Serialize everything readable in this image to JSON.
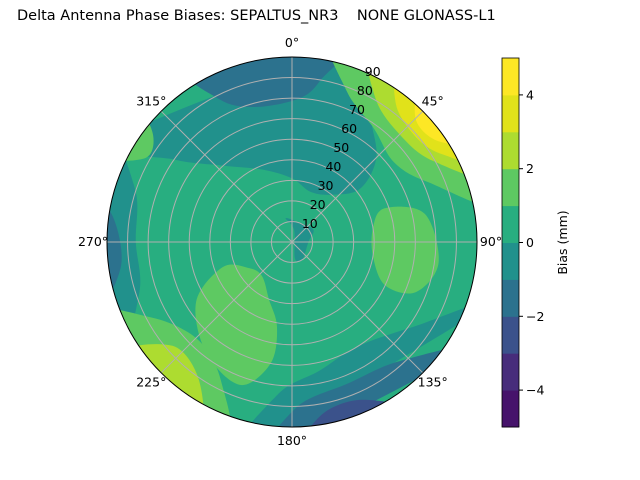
{
  "chart_data": {
    "type": "contour",
    "projection": "polar",
    "title": "Delta Antenna Phase Biases: SEPALTUS_NR3    NONE GLONASS-L1",
    "theta_direction": "clockwise",
    "theta_zero": "top",
    "theta_ticks": [
      "0°",
      "45°",
      "90°",
      "135°",
      "180°",
      "225°",
      "270°",
      "315°"
    ],
    "r_ticks": [
      "10",
      "20",
      "30",
      "40",
      "50",
      "60",
      "70",
      "80",
      "90"
    ],
    "r_range": [
      0,
      90
    ],
    "grid": true,
    "levels": [
      -5,
      -4,
      -3,
      -2,
      -1,
      0,
      1,
      2,
      3,
      4,
      5
    ],
    "level_colors": [
      "#46136b",
      "#472d7b",
      "#3b528b",
      "#2c728e",
      "#21918c",
      "#28ae80",
      "#5ec962",
      "#addc30",
      "#e1e21a",
      "#fde725"
    ],
    "background_level_index": 5,
    "regions": [
      {
        "level_index": 4,
        "points": [
          [
            300,
            90
          ],
          [
            305,
            70
          ],
          [
            318,
            50
          ],
          [
            338,
            38
          ],
          [
            0,
            31
          ],
          [
            20,
            26
          ],
          [
            40,
            30
          ],
          [
            52,
            42
          ],
          [
            45,
            58
          ],
          [
            32,
            72
          ],
          [
            20,
            90
          ]
        ]
      },
      {
        "level_index": 4,
        "points": [
          [
            345,
            12
          ],
          [
            20,
            10
          ],
          [
            60,
            12
          ],
          [
            90,
            8
          ],
          [
            150,
            10
          ],
          [
            170,
            8
          ],
          [
            10,
            6
          ]
        ]
      },
      {
        "level_index": 3,
        "points": [
          [
            330,
            90
          ],
          [
            333,
            78
          ],
          [
            345,
            68
          ],
          [
            3,
            70
          ],
          [
            10,
            80
          ],
          [
            14,
            90
          ]
        ]
      },
      {
        "level_index": 4,
        "points": [
          [
            108,
            90
          ],
          [
            125,
            72
          ],
          [
            148,
            60
          ],
          [
            168,
            64
          ],
          [
            185,
            74
          ],
          [
            192,
            90
          ]
        ]
      },
      {
        "level_index": 3,
        "points": [
          [
            122,
            90
          ],
          [
            138,
            78
          ],
          [
            158,
            74
          ],
          [
            178,
            80
          ],
          [
            184,
            90
          ]
        ]
      },
      {
        "level_index": 2,
        "points": [
          [
            146,
            90
          ],
          [
            156,
            84
          ],
          [
            170,
            85
          ],
          [
            176,
            90
          ]
        ]
      },
      {
        "level_index": 4,
        "points": [
          [
            238,
            90
          ],
          [
            252,
            78
          ],
          [
            270,
            76
          ],
          [
            288,
            80
          ],
          [
            298,
            90
          ]
        ]
      },
      {
        "level_index": 3,
        "points": [
          [
            252,
            90
          ],
          [
            262,
            84
          ],
          [
            278,
            88
          ],
          [
            282,
            90
          ]
        ]
      },
      {
        "level_index": 6,
        "points": [
          [
            70,
            48
          ],
          [
            80,
            40
          ],
          [
            100,
            40
          ],
          [
            115,
            50
          ],
          [
            112,
            65
          ],
          [
            98,
            72
          ],
          [
            78,
            66
          ]
        ]
      },
      {
        "level_index": 6,
        "points": [
          [
            190,
            42
          ],
          [
            202,
            30
          ],
          [
            222,
            22
          ],
          [
            240,
            25
          ],
          [
            250,
            36
          ],
          [
            238,
            55
          ],
          [
            218,
            68
          ],
          [
            200,
            74
          ],
          [
            190,
            60
          ]
        ]
      },
      {
        "level_index": 6,
        "points": [
          [
            200,
            90
          ],
          [
            207,
            76
          ],
          [
            224,
            66
          ],
          [
            242,
            78
          ],
          [
            248,
            90
          ]
        ]
      },
      {
        "level_index": 7,
        "points": [
          [
            208,
            90
          ],
          [
            214,
            81
          ],
          [
            229,
            77
          ],
          [
            236,
            90
          ]
        ]
      },
      {
        "level_index": 6,
        "points": [
          [
            295,
            90
          ],
          [
            300,
            82
          ],
          [
            308,
            86
          ],
          [
            310,
            90
          ]
        ]
      },
      {
        "level_index": 6,
        "points": [
          [
            12,
            90
          ],
          [
            20,
            78
          ],
          [
            36,
            68
          ],
          [
            52,
            63
          ],
          [
            66,
            72
          ],
          [
            78,
            90
          ]
        ]
      },
      {
        "level_index": 7,
        "points": [
          [
            24,
            90
          ],
          [
            30,
            81
          ],
          [
            45,
            74
          ],
          [
            60,
            79
          ],
          [
            70,
            90
          ]
        ]
      },
      {
        "level_index": 8,
        "points": [
          [
            33,
            90
          ],
          [
            37,
            84
          ],
          [
            50,
            79
          ],
          [
            60,
            85
          ],
          [
            66,
            90
          ]
        ]
      },
      {
        "level_index": 9,
        "points": [
          [
            40,
            90
          ],
          [
            45,
            85
          ],
          [
            55,
            86
          ],
          [
            60,
            90
          ]
        ]
      }
    ],
    "colorbar": {
      "label": "Bias (mm)",
      "ticks": [
        "-4",
        "-2",
        "0",
        "2",
        "4"
      ],
      "range": [
        -5,
        5
      ]
    }
  }
}
